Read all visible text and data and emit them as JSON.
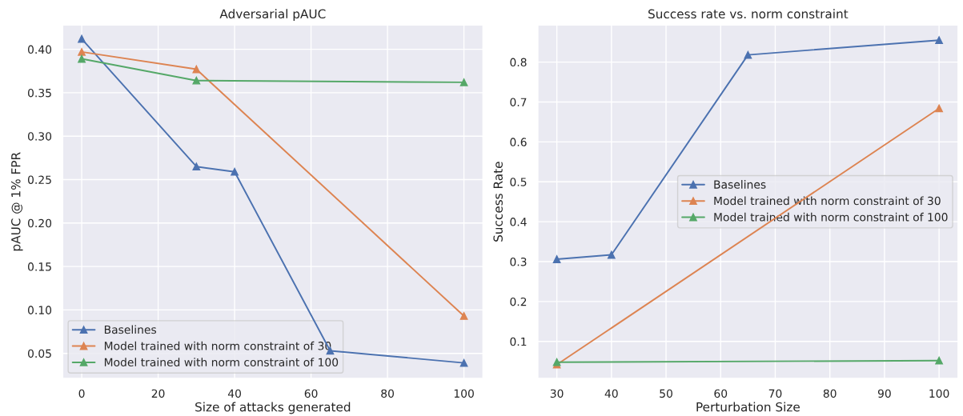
{
  "chart_data": [
    {
      "type": "line",
      "title": "Adversarial pAUC",
      "xlabel": "Size of attacks generated",
      "ylabel": "pAUC @ 1% FPR",
      "marker": "triangle",
      "grid": true,
      "legend": "bottom left",
      "xlim": [
        -5,
        105
      ],
      "xticks": [
        0,
        20,
        40,
        60,
        80,
        100
      ],
      "ylim": [
        0.021,
        0.428
      ],
      "yticks": [
        0.05,
        {
          "value": 0.1,
          "label": "0.10"
        },
        0.15,
        {
          "value": 0.2,
          "label": "0.20"
        },
        0.25,
        {
          "value": 0.3,
          "label": "0.30"
        },
        0.35,
        {
          "value": 0.4,
          "label": "0.40"
        }
      ],
      "series": [
        {
          "name": "Baselines",
          "color": "#4c72b0",
          "x": [
            0,
            30,
            40,
            65,
            100
          ],
          "values": [
            0.412,
            0.265,
            0.259,
            0.053,
            0.039
          ]
        },
        {
          "name": "Model trained with norm constraint of 30",
          "color": "#dd8452",
          "x": [
            0,
            30,
            100
          ],
          "values": [
            0.397,
            0.377,
            0.093
          ]
        },
        {
          "name": "Model trained with norm constraint of 100",
          "color": "#55a868",
          "x": [
            0,
            30,
            100
          ],
          "values": [
            0.389,
            0.364,
            0.362
          ]
        }
      ]
    },
    {
      "type": "line",
      "title": "Success rate vs. norm constraint",
      "xlabel": "Perturbation Size",
      "ylabel": "Success Rate",
      "marker": "triangle",
      "grid": true,
      "legend": "right",
      "xlim": [
        26.5,
        103.5
      ],
      "xticks": [
        30,
        40,
        50,
        60,
        70,
        80,
        90,
        100
      ],
      "ylim": [
        0.007,
        0.893
      ],
      "yticks": [
        0.1,
        0.2,
        0.3,
        0.4,
        0.5,
        0.6,
        0.7,
        0.8
      ],
      "series": [
        {
          "name": "Baselines",
          "color": "#4c72b0",
          "x": [
            30,
            40,
            65,
            100
          ],
          "values": [
            0.306,
            0.317,
            0.818,
            0.855
          ]
        },
        {
          "name": "Model trained with norm constraint of 30",
          "color": "#dd8452",
          "x": [
            30,
            100
          ],
          "values": [
            0.042,
            0.684
          ]
        },
        {
          "name": "Model trained with norm constraint of 100",
          "color": "#55a868",
          "x": [
            30,
            100
          ],
          "values": [
            0.048,
            0.052
          ]
        }
      ]
    }
  ]
}
